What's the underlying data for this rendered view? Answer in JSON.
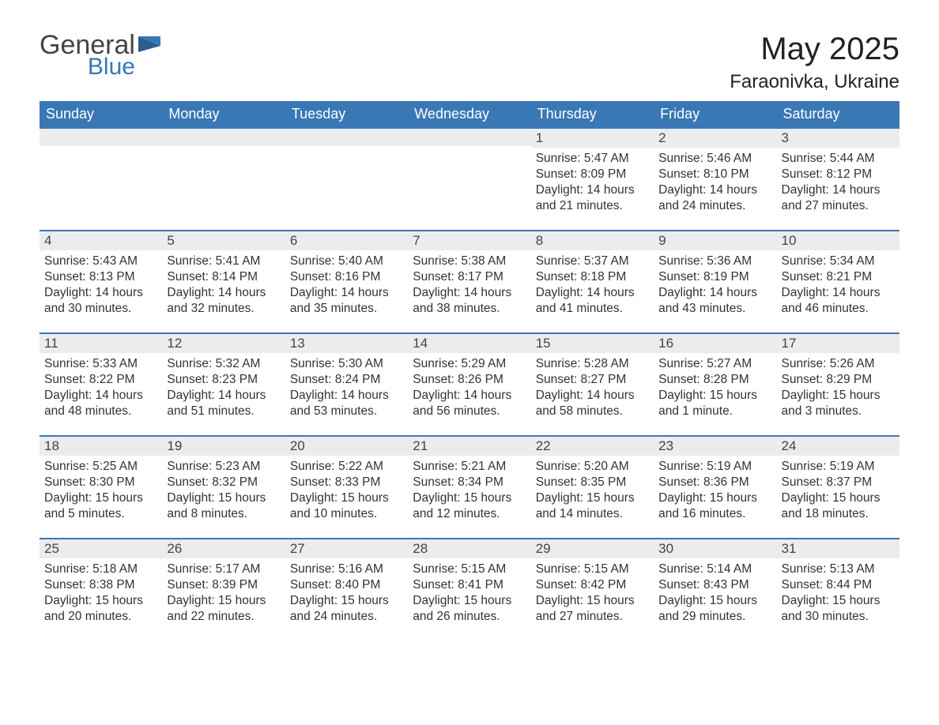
{
  "brand": {
    "line1": "General",
    "line2": "Blue"
  },
  "title": "May 2025",
  "location": "Faraonivka, Ukraine",
  "colors": {
    "header_bg": "#3a77b5",
    "header_text": "#ffffff",
    "daynum_bg": "#ececec",
    "daynum_border": "#3a77b5",
    "body_text": "#333333",
    "page_bg": "#ffffff",
    "logo_gray": "#444444",
    "logo_blue": "#3a77b5"
  },
  "typography": {
    "title_fontsize": 40,
    "location_fontsize": 24,
    "dayhead_fontsize": 18,
    "daynum_fontsize": 17,
    "body_fontsize": 15.5,
    "font_family": "Arial"
  },
  "layout": {
    "columns": 7,
    "rows": 5,
    "leading_blanks": 4
  },
  "day_headers": [
    "Sunday",
    "Monday",
    "Tuesday",
    "Wednesday",
    "Thursday",
    "Friday",
    "Saturday"
  ],
  "days": [
    {
      "n": "1",
      "sunrise": "Sunrise: 5:47 AM",
      "sunset": "Sunset: 8:09 PM",
      "daylight": "Daylight: 14 hours and 21 minutes."
    },
    {
      "n": "2",
      "sunrise": "Sunrise: 5:46 AM",
      "sunset": "Sunset: 8:10 PM",
      "daylight": "Daylight: 14 hours and 24 minutes."
    },
    {
      "n": "3",
      "sunrise": "Sunrise: 5:44 AM",
      "sunset": "Sunset: 8:12 PM",
      "daylight": "Daylight: 14 hours and 27 minutes."
    },
    {
      "n": "4",
      "sunrise": "Sunrise: 5:43 AM",
      "sunset": "Sunset: 8:13 PM",
      "daylight": "Daylight: 14 hours and 30 minutes."
    },
    {
      "n": "5",
      "sunrise": "Sunrise: 5:41 AM",
      "sunset": "Sunset: 8:14 PM",
      "daylight": "Daylight: 14 hours and 32 minutes."
    },
    {
      "n": "6",
      "sunrise": "Sunrise: 5:40 AM",
      "sunset": "Sunset: 8:16 PM",
      "daylight": "Daylight: 14 hours and 35 minutes."
    },
    {
      "n": "7",
      "sunrise": "Sunrise: 5:38 AM",
      "sunset": "Sunset: 8:17 PM",
      "daylight": "Daylight: 14 hours and 38 minutes."
    },
    {
      "n": "8",
      "sunrise": "Sunrise: 5:37 AM",
      "sunset": "Sunset: 8:18 PM",
      "daylight": "Daylight: 14 hours and 41 minutes."
    },
    {
      "n": "9",
      "sunrise": "Sunrise: 5:36 AM",
      "sunset": "Sunset: 8:19 PM",
      "daylight": "Daylight: 14 hours and 43 minutes."
    },
    {
      "n": "10",
      "sunrise": "Sunrise: 5:34 AM",
      "sunset": "Sunset: 8:21 PM",
      "daylight": "Daylight: 14 hours and 46 minutes."
    },
    {
      "n": "11",
      "sunrise": "Sunrise: 5:33 AM",
      "sunset": "Sunset: 8:22 PM",
      "daylight": "Daylight: 14 hours and 48 minutes."
    },
    {
      "n": "12",
      "sunrise": "Sunrise: 5:32 AM",
      "sunset": "Sunset: 8:23 PM",
      "daylight": "Daylight: 14 hours and 51 minutes."
    },
    {
      "n": "13",
      "sunrise": "Sunrise: 5:30 AM",
      "sunset": "Sunset: 8:24 PM",
      "daylight": "Daylight: 14 hours and 53 minutes."
    },
    {
      "n": "14",
      "sunrise": "Sunrise: 5:29 AM",
      "sunset": "Sunset: 8:26 PM",
      "daylight": "Daylight: 14 hours and 56 minutes."
    },
    {
      "n": "15",
      "sunrise": "Sunrise: 5:28 AM",
      "sunset": "Sunset: 8:27 PM",
      "daylight": "Daylight: 14 hours and 58 minutes."
    },
    {
      "n": "16",
      "sunrise": "Sunrise: 5:27 AM",
      "sunset": "Sunset: 8:28 PM",
      "daylight": "Daylight: 15 hours and 1 minute."
    },
    {
      "n": "17",
      "sunrise": "Sunrise: 5:26 AM",
      "sunset": "Sunset: 8:29 PM",
      "daylight": "Daylight: 15 hours and 3 minutes."
    },
    {
      "n": "18",
      "sunrise": "Sunrise: 5:25 AM",
      "sunset": "Sunset: 8:30 PM",
      "daylight": "Daylight: 15 hours and 5 minutes."
    },
    {
      "n": "19",
      "sunrise": "Sunrise: 5:23 AM",
      "sunset": "Sunset: 8:32 PM",
      "daylight": "Daylight: 15 hours and 8 minutes."
    },
    {
      "n": "20",
      "sunrise": "Sunrise: 5:22 AM",
      "sunset": "Sunset: 8:33 PM",
      "daylight": "Daylight: 15 hours and 10 minutes."
    },
    {
      "n": "21",
      "sunrise": "Sunrise: 5:21 AM",
      "sunset": "Sunset: 8:34 PM",
      "daylight": "Daylight: 15 hours and 12 minutes."
    },
    {
      "n": "22",
      "sunrise": "Sunrise: 5:20 AM",
      "sunset": "Sunset: 8:35 PM",
      "daylight": "Daylight: 15 hours and 14 minutes."
    },
    {
      "n": "23",
      "sunrise": "Sunrise: 5:19 AM",
      "sunset": "Sunset: 8:36 PM",
      "daylight": "Daylight: 15 hours and 16 minutes."
    },
    {
      "n": "24",
      "sunrise": "Sunrise: 5:19 AM",
      "sunset": "Sunset: 8:37 PM",
      "daylight": "Daylight: 15 hours and 18 minutes."
    },
    {
      "n": "25",
      "sunrise": "Sunrise: 5:18 AM",
      "sunset": "Sunset: 8:38 PM",
      "daylight": "Daylight: 15 hours and 20 minutes."
    },
    {
      "n": "26",
      "sunrise": "Sunrise: 5:17 AM",
      "sunset": "Sunset: 8:39 PM",
      "daylight": "Daylight: 15 hours and 22 minutes."
    },
    {
      "n": "27",
      "sunrise": "Sunrise: 5:16 AM",
      "sunset": "Sunset: 8:40 PM",
      "daylight": "Daylight: 15 hours and 24 minutes."
    },
    {
      "n": "28",
      "sunrise": "Sunrise: 5:15 AM",
      "sunset": "Sunset: 8:41 PM",
      "daylight": "Daylight: 15 hours and 26 minutes."
    },
    {
      "n": "29",
      "sunrise": "Sunrise: 5:15 AM",
      "sunset": "Sunset: 8:42 PM",
      "daylight": "Daylight: 15 hours and 27 minutes."
    },
    {
      "n": "30",
      "sunrise": "Sunrise: 5:14 AM",
      "sunset": "Sunset: 8:43 PM",
      "daylight": "Daylight: 15 hours and 29 minutes."
    },
    {
      "n": "31",
      "sunrise": "Sunrise: 5:13 AM",
      "sunset": "Sunset: 8:44 PM",
      "daylight": "Daylight: 15 hours and 30 minutes."
    }
  ]
}
